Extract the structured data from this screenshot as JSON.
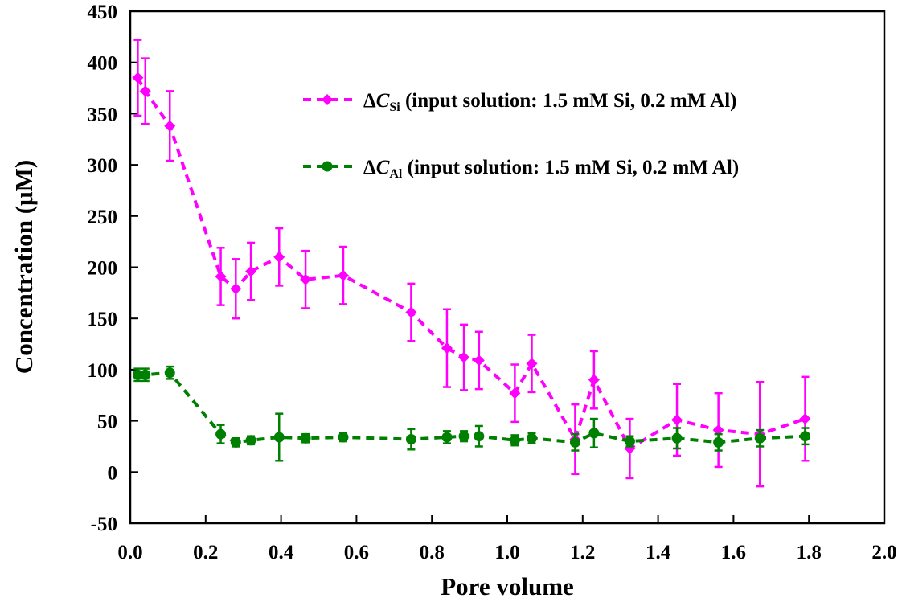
{
  "chart_data": {
    "type": "scatter",
    "title": "",
    "xlabel": "Pore volume",
    "ylabel": "Concentration (μM)",
    "xlim": [
      0.0,
      2.0
    ],
    "ylim": [
      -50,
      450
    ],
    "xticks": [
      "0.0",
      "0.2",
      "0.4",
      "0.6",
      "0.8",
      "1.0",
      "1.2",
      "1.4",
      "1.6",
      "1.8",
      "2.0"
    ],
    "yticks": [
      "-50",
      "0",
      "50",
      "100",
      "150",
      "200",
      "250",
      "300",
      "350",
      "400",
      "450"
    ],
    "legend_position": "top-right",
    "series": [
      {
        "name": "ΔCSi (input solution: 1.5 mM Si, 0.2 mM Al)",
        "legend": {
          "delta": "Δ",
          "var": "C",
          "sub": "Si",
          "rest": " (input solution: 1.5 mM Si, 0.2 mM Al)"
        },
        "color": "#ff00ff",
        "marker": "diamond",
        "line": "dashed",
        "x": [
          0.02,
          0.04,
          0.105,
          0.24,
          0.28,
          0.32,
          0.395,
          0.465,
          0.565,
          0.745,
          0.84,
          0.885,
          0.925,
          1.02,
          1.065,
          1.18,
          1.23,
          1.325,
          1.45,
          1.56,
          1.67,
          1.79
        ],
        "y": [
          385,
          372,
          338,
          191,
          179,
          196,
          210,
          188,
          192,
          156,
          121,
          112,
          109,
          77,
          106,
          32,
          90,
          23,
          51,
          41,
          37,
          52
        ],
        "err": [
          37,
          32,
          34,
          28,
          29,
          28,
          28,
          28,
          28,
          28,
          38,
          32,
          28,
          28,
          28,
          34,
          28,
          29,
          35,
          36,
          51,
          41
        ]
      },
      {
        "name": "ΔCAl (input solution: 1.5 mM Si, 0.2 mM Al)",
        "legend": {
          "delta": "Δ",
          "var": "C",
          "sub": "Al",
          "rest": " (input solution: 1.5 mM Si, 0.2 mM Al)"
        },
        "color": "#008000",
        "marker": "circle",
        "line": "dashed",
        "x": [
          0.02,
          0.04,
          0.105,
          0.24,
          0.28,
          0.32,
          0.395,
          0.465,
          0.565,
          0.745,
          0.84,
          0.885,
          0.925,
          1.02,
          1.065,
          1.18,
          1.23,
          1.325,
          1.45,
          1.56,
          1.67,
          1.79
        ],
        "y": [
          95,
          95,
          97,
          37,
          29,
          31,
          34,
          33,
          34,
          32,
          34,
          35,
          35,
          31,
          33,
          29,
          38,
          30,
          33,
          29,
          33,
          35
        ],
        "err": [
          6,
          6,
          6,
          9,
          4,
          4,
          23,
          4,
          4,
          10,
          6,
          5,
          10,
          5,
          5,
          8,
          14,
          5,
          10,
          8,
          8,
          8
        ]
      }
    ]
  }
}
